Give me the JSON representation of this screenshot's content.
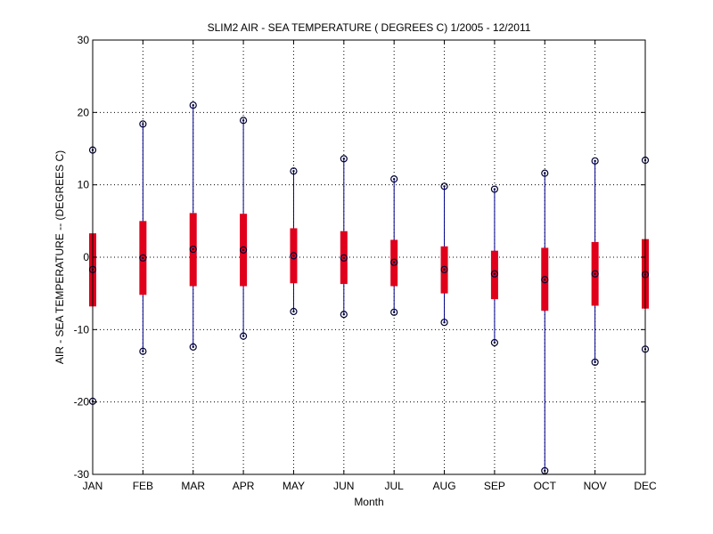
{
  "chart_data": {
    "type": "box",
    "title": "SLIM2  AIR - SEA TEMPERATURE ( DEGREES C) 1/2005 - 12/2011",
    "xlabel": "Month",
    "ylabel": "AIR - SEA TEMPERATURE -- (DEGREES C)",
    "ylim": [
      -30,
      30
    ],
    "yticks": [
      -30,
      -20,
      -10,
      0,
      10,
      20,
      30
    ],
    "grid": true,
    "categories": [
      "JAN",
      "FEB",
      "MAR",
      "APR",
      "MAY",
      "JUN",
      "JUL",
      "AUG",
      "SEP",
      "OCT",
      "NOV",
      "DEC"
    ],
    "max": [
      14.8,
      18.4,
      21.0,
      18.9,
      11.9,
      13.6,
      10.8,
      9.8,
      9.4,
      11.6,
      13.3,
      13.4
    ],
    "q3": [
      3.3,
      5.0,
      6.1,
      6.0,
      4.0,
      3.6,
      2.4,
      1.5,
      0.9,
      1.3,
      2.1,
      2.5
    ],
    "median": [
      -1.7,
      -0.1,
      1.1,
      1.0,
      0.2,
      -0.1,
      -0.7,
      -1.7,
      -2.3,
      -3.1,
      -2.3,
      -2.4
    ],
    "q1": [
      -6.8,
      -5.2,
      -4.0,
      -4.0,
      -3.6,
      -3.7,
      -4.0,
      -5.0,
      -5.8,
      -7.4,
      -6.7,
      -7.1
    ],
    "min": [
      -19.9,
      -13.0,
      -12.4,
      -10.9,
      -7.5,
      -7.9,
      -7.6,
      -9.0,
      -11.8,
      -29.5,
      -14.5,
      -12.7
    ],
    "colors": {
      "box": "#e0001b",
      "whisker": "#00008b",
      "marker": "#000033",
      "grid": "#000000"
    }
  }
}
